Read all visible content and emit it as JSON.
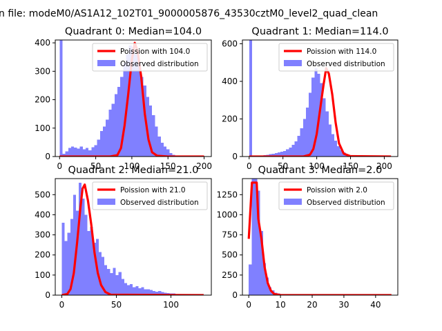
{
  "figure": {
    "suptitle": "n file: modeM0/AS1A12_102T01_9000005876_43530cztM0_level2_quad_clean"
  },
  "chart_data": [
    {
      "type": "bar",
      "title": "Quadrant 0: Median=104.0",
      "median": 104.0,
      "xlim": [
        -6,
        210
      ],
      "ylim": [
        0,
        410
      ],
      "xticks": [
        0,
        50,
        100,
        150,
        200
      ],
      "yticks": [
        0,
        100,
        200,
        300,
        400
      ],
      "legend": {
        "placement": "upper-right",
        "line_label": "Poission with 104.0",
        "hist_label": "Observed distribution"
      },
      "hist": {
        "bin_start": 0,
        "bin_width": 4,
        "counts": [
          410,
          10,
          18,
          30,
          35,
          32,
          28,
          35,
          25,
          30,
          22,
          33,
          40,
          60,
          90,
          105,
          130,
          165,
          185,
          220,
          245,
          280,
          330,
          360,
          390,
          385,
          360,
          320,
          280,
          250,
          210,
          180,
          145,
          105,
          70,
          48,
          35,
          25,
          12,
          6,
          3,
          2,
          1,
          0,
          0,
          0,
          0,
          0,
          0,
          0
        ]
      },
      "poisson": {
        "x": [
          0,
          70,
          80,
          85,
          90,
          95,
          100,
          104,
          108,
          113,
          118,
          123,
          128,
          135,
          150,
          200
        ],
        "y": [
          0,
          0,
          5,
          30,
          110,
          220,
          340,
          400,
          370,
          280,
          150,
          60,
          15,
          3,
          0,
          0
        ]
      },
      "colors": {
        "hist": "#8080ff",
        "line": "#ff0000"
      }
    },
    {
      "type": "bar",
      "title": "Quadrant 1: Median=114.0",
      "median": 114.0,
      "xlim": [
        -10,
        220
      ],
      "ylim": [
        0,
        620
      ],
      "xticks": [
        0,
        50,
        100,
        150,
        200
      ],
      "yticks": [
        0,
        200,
        400,
        600
      ],
      "legend": {
        "placement": "upper-right",
        "line_label": "Poission with 114.0",
        "hist_label": "Observed distribution"
      },
      "hist": {
        "bin_start": 0,
        "bin_width": 4.2,
        "counts": [
          620,
          2,
          3,
          5,
          6,
          8,
          10,
          12,
          15,
          18,
          22,
          25,
          30,
          38,
          48,
          62,
          80,
          110,
          150,
          200,
          260,
          340,
          420,
          470,
          440,
          390,
          310,
          240,
          170,
          120,
          85,
          55,
          35,
          22,
          12,
          8,
          5,
          3,
          2,
          1,
          1,
          0,
          0,
          0,
          0,
          0,
          0,
          0,
          0,
          0
        ]
      },
      "poisson": {
        "x": [
          0,
          80,
          90,
          95,
          100,
          105,
          110,
          114,
          118,
          123,
          128,
          133,
          140,
          150,
          210
        ],
        "y": [
          0,
          0,
          10,
          40,
          120,
          250,
          380,
          470,
          440,
          330,
          180,
          70,
          15,
          2,
          0
        ]
      },
      "colors": {
        "hist": "#8080ff",
        "line": "#ff0000"
      }
    },
    {
      "type": "bar",
      "title": "Quadrant 2: Median=21.0",
      "median": 21.0,
      "xlim": [
        -6,
        137
      ],
      "ylim": [
        0,
        580
      ],
      "xticks": [
        0,
        50,
        100
      ],
      "yticks": [
        0,
        100,
        200,
        300,
        400,
        500
      ],
      "legend": {
        "placement": "upper-right",
        "line_label": "Poission with 21.0",
        "hist_label": "Observed distribution"
      },
      "hist": {
        "bin_start": 0,
        "bin_width": 2.6,
        "counts": [
          360,
          270,
          310,
          380,
          500,
          420,
          560,
          480,
          400,
          320,
          340,
          260,
          280,
          215,
          190,
          150,
          130,
          110,
          135,
          100,
          115,
          80,
          60,
          50,
          55,
          40,
          45,
          35,
          40,
          30,
          30,
          25,
          20,
          18,
          20,
          15,
          12,
          10,
          8,
          8,
          6,
          5,
          4,
          5,
          3,
          2,
          2,
          1,
          1,
          1
        ]
      },
      "poisson": {
        "x": [
          0,
          5,
          8,
          11,
          14,
          17,
          19,
          21,
          24,
          27,
          30,
          33,
          36,
          40,
          45,
          130
        ],
        "y": [
          0,
          5,
          30,
          110,
          260,
          430,
          530,
          550,
          470,
          350,
          210,
          110,
          50,
          15,
          2,
          0
        ]
      },
      "colors": {
        "hist": "#8080ff",
        "line": "#ff0000"
      }
    },
    {
      "type": "bar",
      "title": "Quadrant 3: Median=2.0",
      "median": 2.0,
      "xlim": [
        -2,
        47
      ],
      "ylim": [
        0,
        1450
      ],
      "xticks": [
        0,
        10,
        20,
        30,
        40
      ],
      "yticks": [
        0,
        250,
        500,
        750,
        1000,
        1250
      ],
      "legend": {
        "placement": "upper-right",
        "line_label": "Poission with 2.0",
        "hist_label": "Observed distribution"
      },
      "hist": {
        "bin_start": 0,
        "bin_width": 0.9,
        "counts": [
          380,
          1450,
          1450,
          1300,
          800,
          400,
          220,
          100,
          60,
          30,
          20,
          10,
          5,
          3,
          2,
          1,
          1,
          0,
          0,
          0,
          0,
          0,
          0,
          0,
          0,
          0,
          0,
          0,
          0,
          0,
          0,
          0,
          0,
          0,
          0,
          0,
          0,
          0,
          0,
          0,
          0,
          0,
          0,
          0,
          0,
          0,
          0,
          0,
          0,
          0
        ]
      },
      "poisson": {
        "x": [
          0,
          1,
          1.5,
          2.5,
          3,
          4,
          5,
          6,
          7,
          8,
          10,
          45
        ],
        "y": [
          700,
          1400,
          1400,
          1400,
          950,
          700,
          350,
          150,
          55,
          15,
          2,
          0
        ]
      },
      "colors": {
        "hist": "#8080ff",
        "line": "#ff0000"
      }
    }
  ]
}
